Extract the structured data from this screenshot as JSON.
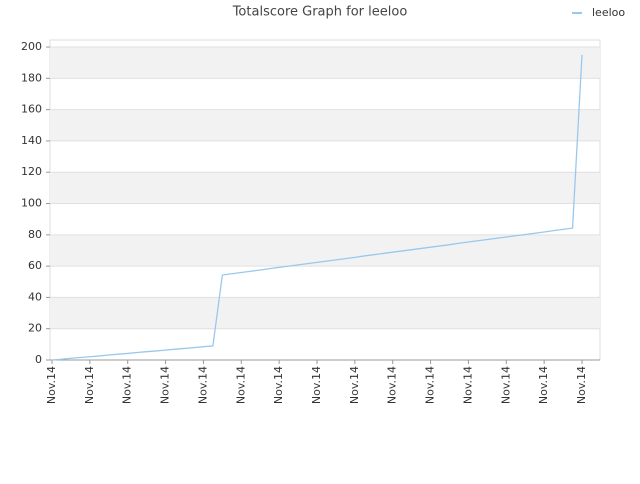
{
  "chart_data": {
    "type": "line",
    "title": "Totalscore Graph for leeloo",
    "categories": [
      "Nov.14",
      null,
      null,
      null,
      "Nov.14",
      null,
      null,
      null,
      "Nov.14",
      null,
      null,
      null,
      "Nov.14",
      null,
      null,
      null,
      "Nov.14",
      null,
      null,
      null,
      "Nov.14",
      null,
      null,
      null,
      "Nov.14",
      null,
      null,
      null,
      "Nov.14",
      null,
      null,
      null,
      "Nov.14",
      null,
      null,
      null,
      "Nov.14",
      null,
      null,
      null,
      "Nov.14",
      null,
      null,
      null,
      "Nov.14",
      null,
      null,
      null,
      "Nov.14",
      null,
      null,
      null,
      "Nov.14",
      null,
      null,
      null,
      "Nov.14"
    ],
    "series": [
      {
        "name": "leeloo",
        "color": "#99c8ee",
        "values": [
          0,
          0.5,
          1.1,
          1.6,
          2.1,
          2.6,
          3.2,
          3.7,
          4.2,
          4.8,
          5.3,
          5.8,
          6.3,
          6.9,
          7.4,
          7.9,
          8.5,
          9.0,
          54.3,
          55.1,
          55.9,
          56.7,
          57.5,
          58.4,
          59.2,
          60.0,
          60.8,
          61.6,
          62.4,
          63.2,
          64.0,
          64.8,
          65.6,
          66.5,
          67.3,
          68.1,
          68.9,
          69.7,
          70.5,
          71.3,
          72.1,
          72.9,
          73.7,
          74.6,
          75.4,
          76.2,
          77.0,
          77.8,
          78.6,
          79.4,
          80.2,
          81.0,
          81.8,
          82.7,
          83.5,
          84.3,
          195
        ]
      }
    ],
    "ylim": [
      0,
      204.5
    ],
    "yticks": [
      0,
      20,
      40,
      60,
      80,
      100,
      120,
      140,
      160,
      180,
      200
    ],
    "grid": true,
    "legend": "top-right"
  }
}
